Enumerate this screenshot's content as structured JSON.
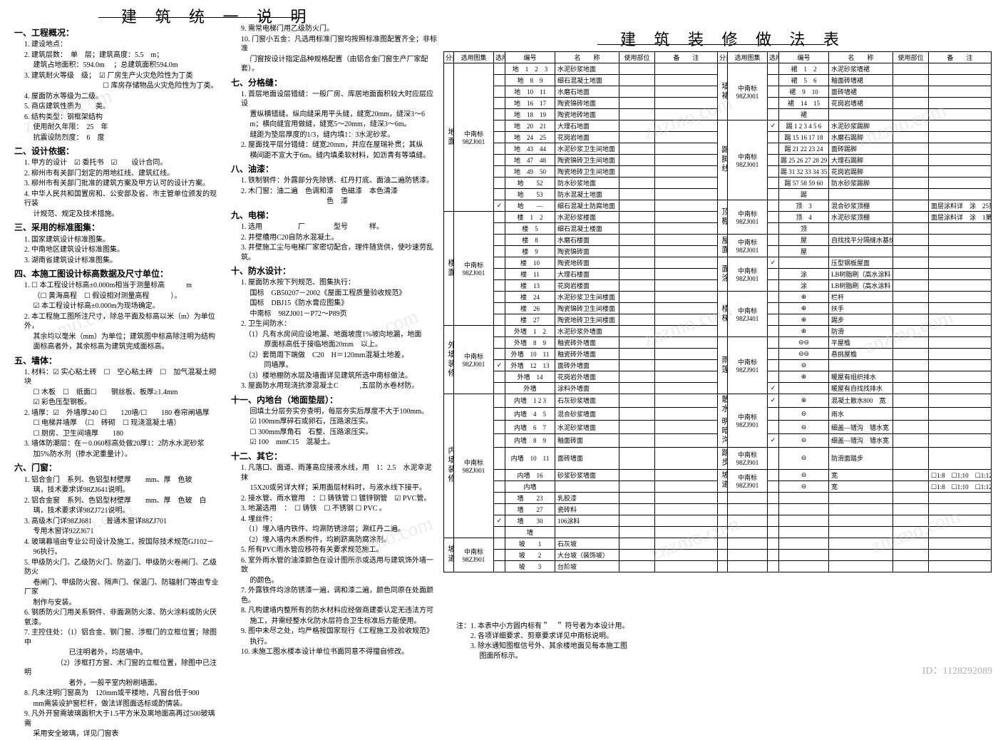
{
  "titles": {
    "left": "建 筑 统 一 说 明",
    "right": "建 筑 装 修 做 法 表"
  },
  "watermark": "znzmo.com",
  "image_id": "ID：1128292089",
  "sections_col1": [
    {
      "head": "一、工程概况：",
      "items": [
        "1. 建设地点：",
        "2. 建筑层数：　单　层；建筑高度：5.5　m；",
        "　 建筑占地面积：594.0m　 ；总建筑面积594.0m",
        "3. 建筑耐火等级　级；　☑ 厂房生产火灾危险性为丁类",
        "　　　　　　　　　　　☐ 库房存储物品火灾危险性为丁类。",
        "4. 屋面防水等级为二级。",
        "5. 商店建筑性质为　　类。",
        "6. 结构类型：钢框架结构",
        "　 使用耐久年限：　25　年",
        "　 抗震设防烈度：　6　度"
      ]
    },
    {
      "head": "二、设计依据：",
      "items": [
        "1. 甲方的设计　☑ 委托书　☑　　设计合同。",
        "2. 柳州市有关部门划定的用地红线、建筑红线。",
        "3. 柳州市有关部门批准的建筑方案及甲方认可的设计方案。",
        "4. 中华人民共和国置房和、公安部及省、市主管单位颁发的现行装",
        "　 计规范、规定及技术措施。"
      ]
    },
    {
      "head": "三、采用的标准图集：",
      "items": [
        "1. 国家建筑设计标准图集。",
        "2. 中南地区建筑设计标准图集。",
        "3. 湖南省建筑设计标准图集。"
      ]
    },
    {
      "head": "四、本施工图设计标高数据及尺寸单位：",
      "items": [
        "1. ☐ 本工程设计标高±0.000m相当于测量标高　　　m",
        "　 （☐ 黄海高程　☐ 假设相对测量高程　　　）。",
        "　 ☑ 本工程设计标高±0.000m为现场确定。",
        "2. 本工程施工图所注尺寸，除总平面及标高以米（m）为单位外，",
        "　 其余均以毫米（mm）为单位；建筑图中标高除注明为结构",
        "　 面标高者外，其余标高为建筑完成面标高。"
      ]
    },
    {
      "head": "五、墙体：",
      "items": [
        "1. 材料：☑ 实心粘土砖　☐　空心粘土砖　☐　加气混凝土砌块",
        "　 ☐ 木板　☐　纸面☐　　钢丝板、板厚≥1.4mm",
        "　 ☑ 彩色压型钢板。",
        "2. 墙厚：☑　外墙厚240 ☐　　120墙/☐　　180 卷帘闸墙厚",
        "　 ☐ 电梯井墙厚　（☐　砖砌　☐ 现浇混凝土墙）",
        "　 ☐ 厨房、卫生间墙厚　　180",
        "3. 墙体防潮层：在－0.060标高处做20厚1：2防水水泥砂浆",
        "　 加5%防水剂（掺水泥重量计）。"
      ]
    },
    {
      "head": "六、门窗：",
      "items": [
        "1. 铝合金门　系列、色铝型材壁厚　　mm、厚　色玻",
        "　 璃，技术要求详98ZJ641说明。",
        "2. 铝合金窗　系列、色铝型材壁厚　　mm、厚　色玻　白",
        "　 璃，技术要求详98ZJ721说明。",
        "3. 高级木门详98ZJ681　　普通木窗详88ZJ701",
        "　 专用木窗详92ZJ671",
        "4. 玻璃幕墙由专业公司设计及施工，按国际技术规范GJ102－",
        "　 96执行。",
        "5. 甲级防火门、乙级防火门、防盗门、甲级防火卷闸门、乙级防火",
        "　 卷闸门、甲级防火窗、隔声门、保温门、防辐射门等由专业厂家",
        "　 制作与安装。",
        "6. 钢质防火门用关系铜件、非面涮防火漆、防火涂料或防火厌氧漆。",
        "7. 主控住处：（1）铝合金、钢门窗、涉框门的立框位置；除图中",
        "　　　　　　 已注明者外，均居墙中。",
        "　　　　　（2）涉框打方窗、木门窗的立框位置，除图中已注明",
        "　　　　　　 者外，一般平室内粉刷墙面。",
        "8. 凡未注明门窗高为　120mm或平楼地，凡窗台低于900",
        "　 mm需装设护窗栏杆，做法详图面选标或酌情装。",
        "9. 凡外开窗需玻璃面积大于1.5平方米及离地面高再过500玻璃需",
        "　 采用安全玻璃，详见门窗表"
      ]
    }
  ],
  "sections_col2": [
    {
      "head": "",
      "items": [
        "9. 需常电梯门用乙级防火门。",
        "10. 门窗小五金：凡选用标准门窗均按照标准图配置齐全；非标准",
        "　 门窗按设计指定品种规格配置（由铝合金门窗生产厂家配套）。"
      ]
    },
    {
      "head": "七、分格缝：",
      "items": [
        "1. 首层地面设层错缝：一般厂房、库居地面面积较大时应层应设",
        "　 置纵横错缝。纵向缝采用平头缝，缝宽20mm，缝深3～6",
        "　 m；横向缝宜用做缝，缝宽5～20mm，缝深3～6m。",
        "　 缝距为垫层厚度的1/3，缝内填1：3水泥砂浆。",
        "2. 屋面找平层分错缝：缝宽20mm，并应在屋瑞补贯；其纵",
        "　 横间距不宣大于6m。缝内填柔软材料，如沥青有等填缝。"
      ]
    },
    {
      "head": "八、油漆：",
      "items": [
        "1. 铁制钢件：外露部分先除锈、红丹打底、面油二遍防锈漆。",
        "2. 木门窗：油二遍　色调和漆　色磁漆　本色清漆",
        "　　　　　　　　　　　　色　漆"
      ]
    },
    {
      "head": "九、电梯：",
      "items": [
        "1. 选用　　　　　厂　　　　型号　　　样。",
        "2. 井壁槽用C20自防水混凝土。",
        "3. 井壁施工尘与电梯厂家密切配合，理件随货供，使吵速劳乱筑。"
      ]
    },
    {
      "head": "十、防水设计：",
      "items": [
        "1. 屋面防水按下列规范、图集执行：",
        "　 国标　GB50207－2002《屋面工程质量验收规范》",
        "　 国标　DBJ15《防水膏应图集》",
        "　 中南标　98ZJ001－P72～P89页",
        "2. 卫生间防水：",
        "　（1）凡有水房间应设地漏、地面坡度1%坡向地漏，地面",
        "　　　 原面标高低于接临地面20mm　以上。",
        "　（2）套筒周下端做　C20　H＝120mm混凝土地差，",
        "　　　 同墙厚。",
        "　（3）楼地棚防水层及墙面详见建筑所选中南标做法。",
        "3. 屋面防水用现浇抗渗混凝土C　　　,五层防水卷材防。"
      ]
    },
    {
      "head": "十一、内地台（地面垫层）：",
      "items": [
        "　   回填土分层夯实夯查明，每层夯实后厚度不大于100mm。",
        "　 ☑ 100mm厚碎石或卵石，压路滚压实。",
        "　 ☐ 300mm厚角石　石整、压路滚压实。",
        "　 ☑ 100　mmC15　混凝土。"
      ]
    },
    {
      "head": "十二、其它：",
      "items": [
        "1. 凡落口、面道、雨蓬高应接液水线，用　1：2.5　水泥幸泥抹",
        "　 15X20或另详大样；采用面层材料时，与液水线下接平。",
        "2. 接水管、雨水管用　：☐ 铸铁管 ☐ 镀锌钢管　☑ PVC管。",
        "3. 地漏选用　：　☐ 铸铁　☐ 不锈钢 ☐ PVC 。",
        "4. 埋丝件：",
        "　（1）埋入墙内铁件、均涮防锈涂层；涮红丹二遍。",
        "　（2）埋入墙内木质构件，均刷跻离防腐涂剂。",
        "5. 所有PVC雨水管应移符有关要求规范施工。",
        "6. 室外雨水管的油漆颜色在设计图所示或选用与建筑饰外墙一致",
        "　 的颜色。",
        "7. 外露铁件均涂防锈漆一遍，调和漆二遍，颜色同原在处面颜色。",
        "8. 凡构建墙内整所有的防水材料应经做商建委认定无违法方可",
        "　 施工，并需经整水化防水层符合卫生标准后方能使用。",
        "9. 图中未尽之处，均严格按国家现行《工程施工及验收规范》",
        "　 执行。",
        "10. 未施工图水楼本设计单位书面同意不得擅自修改。"
      ]
    }
  ],
  "table": {
    "headers": [
      "分类",
      "选用图集",
      "选用",
      "编号",
      "名　　称",
      "使用部位",
      "备　　注"
    ],
    "panels": [
      {
        "cat": "地面",
        "atlas": "中南标\n98ZJ001",
        "rows": [
          {
            "sel": "",
            "num": "地　1　2　3",
            "name": "水泥砂浆地面"
          },
          {
            "sel": "",
            "num": "地　8　9",
            "name": "细石混凝土地面"
          },
          {
            "sel": "",
            "num": "地　10　11",
            "name": "水磨石地面"
          },
          {
            "sel": "",
            "num": "地　16　17",
            "name": "陶瓷锦砖地面"
          },
          {
            "sel": "",
            "num": "地　18　19",
            "name": "陶瓷地砖地面"
          },
          {
            "sel": "",
            "num": "地　20　21",
            "name": "大理石地面"
          },
          {
            "sel": "",
            "num": "地　24　25",
            "name": "花岗岩地面"
          },
          {
            "sel": "",
            "num": "地　43　44",
            "name": "水泥砂浆卫生间地面"
          },
          {
            "sel": "",
            "num": "地　47　48",
            "name": "陶瓷锦砖卫生间地面"
          },
          {
            "sel": "",
            "num": "地　49　50",
            "name": "陶瓷地砖卫生间地面"
          },
          {
            "sel": "",
            "num": "地　　52",
            "name": "防水砂浆地面"
          },
          {
            "sel": "",
            "num": "地　　53",
            "name": "防水混凝土地面"
          },
          {
            "sel": "✓",
            "num": "地　　—",
            "name": "细石混凝土防腐地面"
          }
        ]
      },
      {
        "cat": "楼面",
        "atlas": "中南标\n98ZJ001",
        "rows": [
          {
            "num": "楼　1　2",
            "name": "水泥砂浆楼面"
          },
          {
            "num": "楼　5",
            "name": "细石混凝土楼面"
          },
          {
            "num": "楼　8",
            "name": "水磨石楼面"
          },
          {
            "num": "楼　9",
            "name": "陶瓷锦砖面"
          },
          {
            "num": "楼　10",
            "name": "陶瓷地砖面"
          },
          {
            "num": "楼　11",
            "name": "大理石楼面"
          },
          {
            "num": "楼　13",
            "name": "花岗岩楼面"
          },
          {
            "num": "楼　24",
            "name": "水泥砂浆卫生间楼面"
          },
          {
            "num": "楼　26",
            "name": "陶瓷锦砖卫生间楼面"
          },
          {
            "num": "楼　27",
            "name": "陶瓷地砖卫生间楼面"
          }
        ]
      },
      {
        "cat": "外墙装修",
        "atlas": "中南标\n98ZJ001",
        "rows": [
          {
            "num": "外墙　1　2",
            "name": "水泥砂浆外墙面"
          },
          {
            "num": "外墙　8　9",
            "name": "釉瓷砖外墙面"
          },
          {
            "num": "外墙　10　11",
            "name": "釉瓷砖外墙面"
          },
          {
            "sel": "✓",
            "num": "外墙　12　13",
            "name": "面砖外墙面"
          },
          {
            "num": "外墙　14",
            "name": "花岗岩外墙面"
          },
          {
            "num": "外墙",
            "name": "涂料外墙面"
          }
        ]
      },
      {
        "cat": "内墙装修",
        "atlas": "中南标\n98ZJ001",
        "rows": [
          {
            "num": "内墙　1 2 3",
            "name": "石灰砂浆墙面"
          },
          {
            "num": "内墙　4　5",
            "name": "混合砂浆墙面"
          },
          {
            "num": "内墙　6　7",
            "name": "水泥砂浆墙面"
          },
          {
            "num": "内墙　8　9",
            "name": "釉面砖面"
          },
          {
            "num": "内墙　10　11",
            "name": "面砖墙面"
          },
          {
            "num": "内墙　16",
            "name": "砂浆砂浆墙面"
          },
          {
            "num": "内墙",
            "name": ""
          },
          {
            "num": "墙　　23",
            "name": "乳胶漆"
          },
          {
            "num": "墙　　27",
            "name": "瓷砖料"
          },
          {
            "sel": "✓",
            "num": "墙　　30",
            "name": "106涂料"
          },
          {
            "num": "墙",
            "name": ""
          }
        ]
      },
      {
        "cat": "坡道",
        "atlas": "中南标\n98ZJ901",
        "rows": [
          {
            "num": "坡　　1",
            "name": "石灰坡"
          },
          {
            "num": "坡　　2",
            "name": "大台坡（装饰坡）"
          },
          {
            "num": "坡　　3",
            "name": "台阶坡"
          }
        ]
      }
    ],
    "panels_right": [
      {
        "cat": "墙裙",
        "atlas": "中南标\n98ZJ001",
        "rows": [
          {
            "num": "裙　1　2",
            "name": "水泥砂浆墙裙"
          },
          {
            "num": "裙　5　6",
            "name": "釉面砖墙裙"
          },
          {
            "num": "裙　9　10",
            "name": "面砖墙裙"
          },
          {
            "num": "裙　14　15",
            "name": "花岗岩墙裙"
          },
          {
            "num": "裙",
            "name": ""
          }
        ]
      },
      {
        "cat": "踢脚线",
        "atlas": "中南标\n98ZJ001",
        "rows": [
          {
            "sel": "✓",
            "num": "踢 1 2 3 4 5 6",
            "name": "水泥砂浆踢脚"
          },
          {
            "num": "踢 15 16 17 18",
            "name": "水磨石踢脚"
          },
          {
            "num": "踢 21 22 23 24",
            "name": "面砖踢脚"
          },
          {
            "num": "踢 25 26 27 28 29 30",
            "name": "大理石踢脚"
          },
          {
            "num": "踢 31 32 33 34 35 36",
            "name": "花岗岩踢脚"
          },
          {
            "num": "踢 57 58 59 60",
            "name": "防水砂浆踢脚"
          },
          {
            "num": "踢",
            "name": ""
          }
        ]
      },
      {
        "cat": "顶棚",
        "atlas": "中南标\n98ZJ001",
        "rows": [
          {
            "num": "顶　3",
            "name": "混合砂浆顶棚",
            "note": "面层涂料详　涂　25第2"
          },
          {
            "num": "顶　4",
            "name": "水泥砂浆顶棚",
            "note": "面层涂料详　涂　1第2"
          },
          {
            "num": "顶",
            "name": ""
          }
        ]
      },
      {
        "cat": "屋面",
        "atlas": "中南标\n98ZJ001",
        "rows": [
          {
            "num": "屋",
            "name": "自找找平分隔缝水基价"
          },
          {
            "num": "屋",
            "name": ""
          }
        ]
      },
      {
        "cat": "面涂",
        "atlas": "中南标\n98ZJ001",
        "rows": [
          {
            "sel": "✓",
            "num": "",
            "name": "压型钢板屋面"
          },
          {
            "num": "涂",
            "name": "LB树脂刷（高水涂料"
          },
          {
            "num": "涂",
            "name": "LB树脂刷（高水涂料"
          }
        ]
      },
      {
        "cat": "楼梯",
        "atlas": "中南标\n98ZJ401",
        "rows": [
          {
            "num": "⊕",
            "name": "栏杆"
          },
          {
            "num": "⊕",
            "name": "扶手"
          },
          {
            "num": "⊕",
            "name": "踢步"
          },
          {
            "num": "⊕",
            "name": "防滑"
          }
        ]
      },
      {
        "cat": "雨篷",
        "atlas": "中南标\n98ZJ901",
        "rows": [
          {
            "num": "⊖⊖",
            "name": "平屋檐"
          },
          {
            "num": "⊖⊖",
            "name": "悬挑屋檐"
          },
          {
            "num": "⊖",
            "name": ""
          },
          {
            "num": "⊕",
            "name": "暖屋有组织排水"
          },
          {
            "sel": "✓",
            "num": "",
            "name": "暖屋有自找找排水"
          }
        ]
      },
      {
        "cat": "散水 明暗沟",
        "atlas": "中南标\n98ZJ901",
        "rows": [
          {
            "sel": "✓",
            "num": "⊕",
            "name": "混凝土散水800　宽",
            "use": ""
          },
          {
            "num": "⊖",
            "name": "雨水"
          },
          {
            "num": "⊖",
            "name": "细盖—错沟　错水宽"
          },
          {
            "sel": "✓",
            "num": "⊖",
            "name": "细盖—错沟　错水宽"
          }
        ]
      },
      {
        "cat": "踏步",
        "atlas": "中南标\n98ZJ901",
        "rows": [
          {
            "num": "⊖",
            "name": "防滑面踏步"
          }
        ]
      },
      {
        "cat": "坡道",
        "atlas": "中南标\n98ZJ901",
        "rows": [
          {
            "num": "⊖",
            "name": "宽",
            "note": "☐1:8　☐1:10　☐1:12"
          },
          {
            "num": "⊖",
            "name": "宽",
            "note": "☐1:8　☐1:10　☐1:12"
          }
        ]
      }
    ]
  },
  "notes": [
    "注：1. 本表中小方圆内标有＂　＂ 符号者为本设计用。",
    "　　2. 各项详细要求、剪章要求详见中南标说明。",
    "　　3. 除水通知图框信号外、其余楼地面见每本施工图",
    "　　　 图面所标示。"
  ]
}
